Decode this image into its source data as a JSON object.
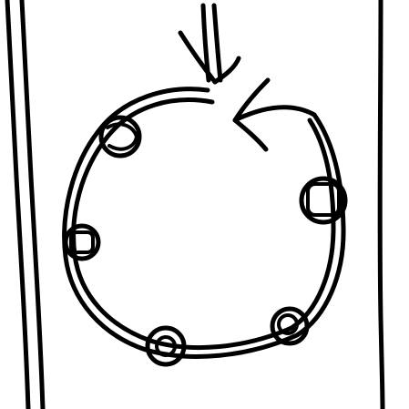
{
  "colors": {
    "ink": "#000000",
    "background": "#ffffff"
  },
  "drawing": {
    "style": "hand-drawn black ink sketch",
    "elements": [
      "left-border-double-line",
      "right-border-line",
      "top-double-arrow",
      "ring-loop",
      "return-arrow",
      "ring-bead-top-left",
      "ring-bead-left",
      "ring-bead-bottom",
      "ring-bead-bottom-right",
      "ring-bead-right"
    ]
  }
}
